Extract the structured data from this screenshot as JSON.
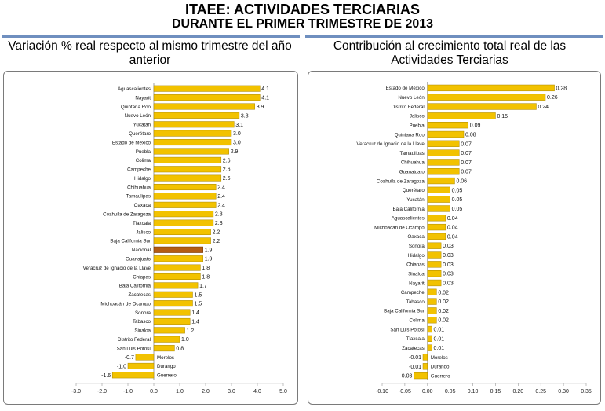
{
  "header": {
    "title_line1": "ITAEE: ACTIVIDADES TERCIARIAS",
    "title_line2": "DURANTE EL PRIMER TRIMESTRE DE 2013"
  },
  "colors": {
    "bar": "#f2c200",
    "bar_edge": "#a88600",
    "highlight": "#b45c14",
    "highlight_edge": "#6b3000",
    "rule": "#6f8fbf"
  },
  "chart_data": [
    {
      "type": "bar",
      "orientation": "horizontal",
      "title": "Variación % real respecto al mismo trimestre del año anterior",
      "xlim": [
        -3.0,
        5.0
      ],
      "ticks": [
        "-3.0",
        "-2.0",
        "-1.0",
        "0.0",
        "1.0",
        "2.0",
        "3.0",
        "4.0",
        "5.0"
      ],
      "highlight": "Nacional",
      "categories": [
        "Aguascalientes",
        "Nayarit",
        "Quintana Roo",
        "Nuevo León",
        "Yucatán",
        "Querétaro",
        "Estado de México",
        "Puebla",
        "Colima",
        "Campeche",
        "Hidalgo",
        "Chihuahua",
        "Tamaulipas",
        "Oaxaca",
        "Coahuila de Zaragoza",
        "Tlaxcala",
        "Jalisco",
        "Baja California Sur",
        "Nacional",
        "Guanajuato",
        "Veracruz de Ignacio de la Llave",
        "Chiapas",
        "Baja California",
        "Zacatecas",
        "Michoacán de Ocampo",
        "Sonora",
        "Tabasco",
        "Sinaloa",
        "Distrito Federal",
        "San Luis Potosí",
        "Morelos",
        "Durango",
        "Guerrero"
      ],
      "values": [
        4.1,
        4.1,
        3.9,
        3.3,
        3.1,
        3.0,
        3.0,
        2.9,
        2.6,
        2.6,
        2.6,
        2.4,
        2.4,
        2.4,
        2.3,
        2.3,
        2.2,
        2.2,
        1.9,
        1.9,
        1.8,
        1.8,
        1.7,
        1.5,
        1.5,
        1.4,
        1.4,
        1.2,
        1.0,
        0.8,
        -0.7,
        -1.0,
        -1.6
      ],
      "labels": [
        "4.1",
        "4.1",
        "3.9",
        "3.3",
        "3.1",
        "3.0",
        "3.0",
        "2.9",
        "2.6",
        "2.6",
        "2.6",
        "2.4",
        "2.4",
        "2.4",
        "2.3",
        "2.3",
        "2.2",
        "2.2",
        "1.9",
        "1.9",
        "1.8",
        "1.8",
        "1.7",
        "1.5",
        "1.5",
        "1.4",
        "1.4",
        "1.2",
        "1.0",
        "0.8",
        "-0.7",
        "-1.0",
        "-1.6"
      ]
    },
    {
      "type": "bar",
      "orientation": "horizontal",
      "title": "Contribución al crecimiento total real de las Actividades Terciarias",
      "xlim": [
        -0.1,
        0.35
      ],
      "ticks": [
        "-0.10",
        "-0.05",
        "0.00",
        "0.05",
        "0.10",
        "0.15",
        "0.20",
        "0.25",
        "0.30",
        "0.35"
      ],
      "categories": [
        "Estado de México",
        "Nuevo León",
        "Distrito Federal",
        "Jalisco",
        "Puebla",
        "Quintana Roo",
        "Veracruz de Ignacio de la Llave",
        "Tamaulipas",
        "Chihuahua",
        "Guanajuato",
        "Coahuila de Zaragoza",
        "Querétaro",
        "Yucatán",
        "Baja California",
        "Aguascalientes",
        "Michoacán de Ocampo",
        "Oaxaca",
        "Sonora",
        "Hidalgo",
        "Chiapas",
        "Sinaloa",
        "Nayarit",
        "Campeche",
        "Tabasco",
        "Baja California Sur",
        "Colima",
        "San Luis Potosí",
        "Tlaxcala",
        "Zacatecas",
        "Morelos",
        "Durango",
        "Guerrero"
      ],
      "values": [
        0.28,
        0.26,
        0.24,
        0.15,
        0.09,
        0.08,
        0.07,
        0.07,
        0.07,
        0.07,
        0.06,
        0.05,
        0.05,
        0.05,
        0.04,
        0.04,
        0.04,
        0.03,
        0.03,
        0.03,
        0.03,
        0.03,
        0.02,
        0.02,
        0.02,
        0.02,
        0.01,
        0.01,
        0.01,
        -0.01,
        -0.01,
        -0.03
      ],
      "labels": [
        "0.28",
        "0.26",
        "0.24",
        "0.15",
        "0.09",
        "0.08",
        "0.07",
        "0.07",
        "0.07",
        "0.07",
        "0.06",
        "0.05",
        "0.05",
        "0.05",
        "0.04",
        "0.04",
        "0.04",
        "0.03",
        "0.03",
        "0.03",
        "0.03",
        "0.03",
        "0.02",
        "0.02",
        "0.02",
        "0.02",
        "0.01",
        "0.01",
        "0.01",
        "-0.01",
        "-0.01",
        "-0.03"
      ]
    }
  ]
}
